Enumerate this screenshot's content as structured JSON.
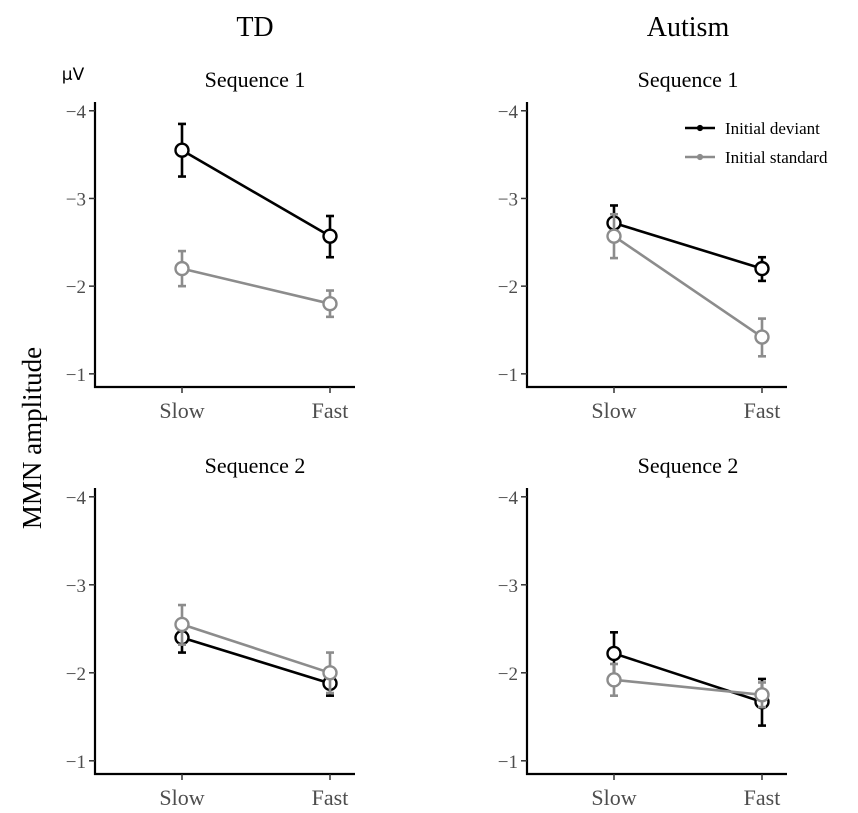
{
  "figure": {
    "group_titles": [
      "TD",
      "Autism"
    ],
    "y_axis_label": "MMN amplitude",
    "unit": "μV"
  },
  "colors": {
    "initial_deviant": "#000000",
    "initial_standard": "#8c8c8c",
    "axis_text": "#4d4d4d"
  },
  "chart_data": [
    {
      "type": "line",
      "group": "TD",
      "title": "Sequence 1",
      "categories": [
        "Slow",
        "Fast"
      ],
      "y_ticks": [
        "−4",
        "−3",
        "−2",
        "−1"
      ],
      "ylim": [
        -4.1,
        -0.85
      ],
      "y_reversed": true,
      "show_unit": true,
      "show_legend": false,
      "series": [
        {
          "name": "Initial deviant",
          "values": [
            -3.55,
            -2.57
          ],
          "error_low": [
            -3.25,
            -2.33
          ],
          "error_high": [
            -3.85,
            -2.8
          ]
        },
        {
          "name": "Initial standard",
          "values": [
            -2.2,
            -1.8
          ],
          "error_low": [
            -2.0,
            -1.65
          ],
          "error_high": [
            -2.4,
            -1.95
          ]
        }
      ]
    },
    {
      "type": "line",
      "group": "Autism",
      "title": "Sequence 1",
      "categories": [
        "Slow",
        "Fast"
      ],
      "y_ticks": [
        "−4",
        "−3",
        "−2",
        "−1"
      ],
      "ylim": [
        -4.1,
        -0.85
      ],
      "y_reversed": true,
      "show_unit": false,
      "show_legend": true,
      "legend_position": "top-right",
      "series": [
        {
          "name": "Initial deviant",
          "values": [
            -2.72,
            -2.2
          ],
          "error_low": [
            -2.52,
            -2.06
          ],
          "error_high": [
            -2.92,
            -2.33
          ]
        },
        {
          "name": "Initial standard",
          "values": [
            -2.57,
            -1.42
          ],
          "error_low": [
            -2.32,
            -1.2
          ],
          "error_high": [
            -2.82,
            -1.63
          ]
        }
      ]
    },
    {
      "type": "line",
      "group": "TD",
      "title": "Sequence 2",
      "categories": [
        "Slow",
        "Fast"
      ],
      "y_ticks": [
        "−4",
        "−3",
        "−2",
        "−1"
      ],
      "ylim": [
        -4.1,
        -0.85
      ],
      "y_reversed": true,
      "show_unit": false,
      "show_legend": false,
      "series": [
        {
          "name": "Initial deviant",
          "values": [
            -2.4,
            -1.88
          ],
          "error_low": [
            -2.23,
            -1.74
          ],
          "error_high": [
            -2.57,
            -2.02
          ]
        },
        {
          "name": "Initial standard",
          "values": [
            -2.55,
            -2.0
          ],
          "error_low": [
            -2.32,
            -1.77
          ],
          "error_high": [
            -2.77,
            -2.23
          ]
        }
      ]
    },
    {
      "type": "line",
      "group": "Autism",
      "title": "Sequence 2",
      "categories": [
        "Slow",
        "Fast"
      ],
      "y_ticks": [
        "−4",
        "−3",
        "−2",
        "−1"
      ],
      "ylim": [
        -4.1,
        -0.85
      ],
      "y_reversed": true,
      "show_unit": false,
      "show_legend": false,
      "series": [
        {
          "name": "Initial deviant",
          "values": [
            -2.22,
            -1.67
          ],
          "error_low": [
            -1.98,
            -1.4
          ],
          "error_high": [
            -2.46,
            -1.93
          ]
        },
        {
          "name": "Initial standard",
          "values": [
            -1.92,
            -1.75
          ],
          "error_low": [
            -1.74,
            -1.61
          ],
          "error_high": [
            -2.1,
            -1.89
          ]
        }
      ]
    }
  ]
}
